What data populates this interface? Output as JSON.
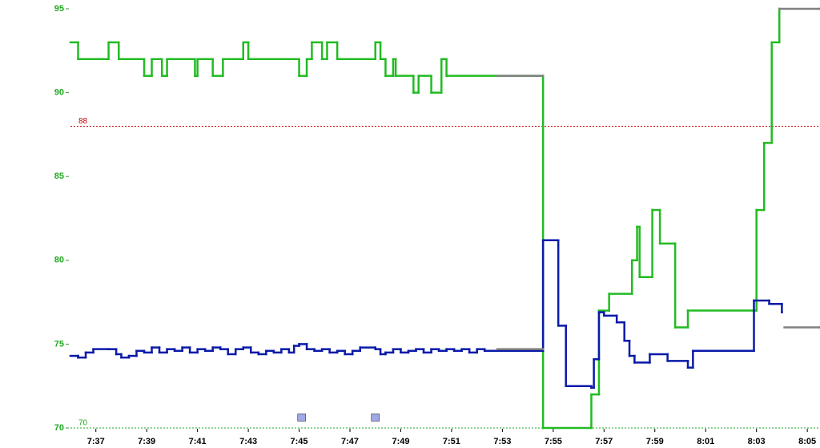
{
  "chart_data": {
    "type": "step",
    "xlim": [
      456,
      485.5
    ],
    "ylim": [
      70,
      95
    ],
    "xticks": [
      {
        "value": 457,
        "label": "7:37"
      },
      {
        "value": 459,
        "label": "7:39"
      },
      {
        "value": 461,
        "label": "7:41"
      },
      {
        "value": 463,
        "label": "7:43"
      },
      {
        "value": 465,
        "label": "7:45"
      },
      {
        "value": 467,
        "label": "7:47"
      },
      {
        "value": 469,
        "label": "7:49"
      },
      {
        "value": 471,
        "label": "7:51"
      },
      {
        "value": 473,
        "label": "7:53"
      },
      {
        "value": 475,
        "label": "7:55"
      },
      {
        "value": 477,
        "label": "7:57"
      },
      {
        "value": 479,
        "label": "7:59"
      },
      {
        "value": 481,
        "label": "8:01"
      },
      {
        "value": 483,
        "label": "8:03"
      },
      {
        "value": 485,
        "label": "8:05"
      }
    ],
    "yticks": [
      70,
      75,
      80,
      85,
      90,
      95
    ],
    "ytick_color": "#22aa22",
    "ref_lines": [
      {
        "value": 88,
        "color": "#c00000"
      },
      {
        "value": 70,
        "color": "#22aa22"
      }
    ],
    "series": [
      {
        "color": "#22bb22",
        "x": [
          456.0,
          456.3,
          457.5,
          457.9,
          458.9,
          459.2,
          459.6,
          459.8,
          460.9,
          461.0,
          461.6,
          462.0,
          462.8,
          463.0,
          465.0,
          465.3,
          465.5,
          465.9,
          466.1,
          466.5,
          468.0,
          468.2,
          468.4,
          468.7,
          468.8,
          469.5,
          469.7,
          470.2,
          470.6,
          470.8,
          474.6,
          476.5,
          476.8,
          477.2,
          478.1,
          478.3,
          478.4,
          478.9,
          479.2,
          479.8,
          480.3,
          483.0,
          483.3,
          483.6,
          483.9
        ],
        "values": [
          93,
          92,
          93,
          92,
          91,
          92,
          91,
          92,
          91,
          92,
          91,
          92,
          93,
          92,
          91,
          92,
          93,
          92,
          93,
          92,
          93,
          92,
          91,
          92,
          91,
          90,
          91,
          90,
          92,
          91,
          70,
          72,
          77,
          78,
          80,
          82,
          79,
          83,
          81,
          76,
          77,
          83,
          87,
          93,
          95
        ]
      },
      {
        "color": "#0a1aa8",
        "x": [
          456.0,
          456.3,
          456.6,
          456.9,
          457.5,
          457.8,
          458.0,
          458.3,
          458.6,
          458.9,
          459.2,
          459.5,
          459.8,
          460.1,
          460.4,
          460.7,
          461.0,
          461.3,
          461.6,
          461.9,
          462.2,
          462.5,
          462.8,
          463.1,
          463.4,
          463.7,
          464.0,
          464.3,
          464.6,
          464.8,
          465.0,
          465.3,
          465.6,
          465.9,
          466.2,
          466.5,
          466.8,
          467.1,
          467.4,
          468.0,
          468.2,
          468.4,
          468.7,
          469.0,
          469.3,
          469.6,
          469.9,
          470.2,
          470.5,
          470.8,
          471.1,
          471.4,
          471.7,
          472.0,
          472.3,
          474.6,
          475.2,
          475.5,
          476.5,
          476.6,
          476.8,
          477.0,
          477.5,
          477.8,
          478.0,
          478.2,
          478.8,
          479.5,
          480.3,
          480.5,
          482.9,
          483.5,
          484.0
        ],
        "values": [
          74.3,
          74.2,
          74.5,
          74.7,
          74.7,
          74.4,
          74.2,
          74.3,
          74.6,
          74.5,
          74.8,
          74.5,
          74.7,
          74.6,
          74.8,
          74.5,
          74.7,
          74.6,
          74.8,
          74.7,
          74.4,
          74.7,
          74.8,
          74.5,
          74.4,
          74.6,
          74.5,
          74.7,
          74.5,
          74.9,
          75.0,
          74.7,
          74.6,
          74.7,
          74.5,
          74.6,
          74.4,
          74.6,
          74.8,
          74.7,
          74.4,
          74.5,
          74.7,
          74.5,
          74.6,
          74.7,
          74.5,
          74.7,
          74.6,
          74.7,
          74.6,
          74.7,
          74.5,
          74.7,
          74.6,
          81.2,
          76.1,
          72.5,
          72.4,
          74.1,
          76.9,
          76.7,
          76.3,
          75.2,
          74.3,
          73.9,
          74.4,
          74.0,
          73.6,
          74.6,
          77.6,
          77.4,
          76.9
        ]
      },
      {
        "color": "#808080",
        "x": [
          472.8,
          474.6
        ],
        "values": [
          91,
          91
        ]
      },
      {
        "color": "#808080",
        "x": [
          472.8,
          474.6
        ],
        "values": [
          74.7,
          74.7
        ]
      },
      {
        "color": "#808080",
        "x": [
          483.9,
          485.5
        ],
        "values": [
          95,
          95
        ]
      },
      {
        "color": "#808080",
        "x": [
          484.1,
          485.5
        ],
        "values": [
          76.0,
          76.0
        ]
      }
    ],
    "events": {
      "color": "#a0a8e8",
      "x": [
        465.1,
        468.0
      ],
      "values": [
        70.6,
        70.6
      ]
    }
  }
}
